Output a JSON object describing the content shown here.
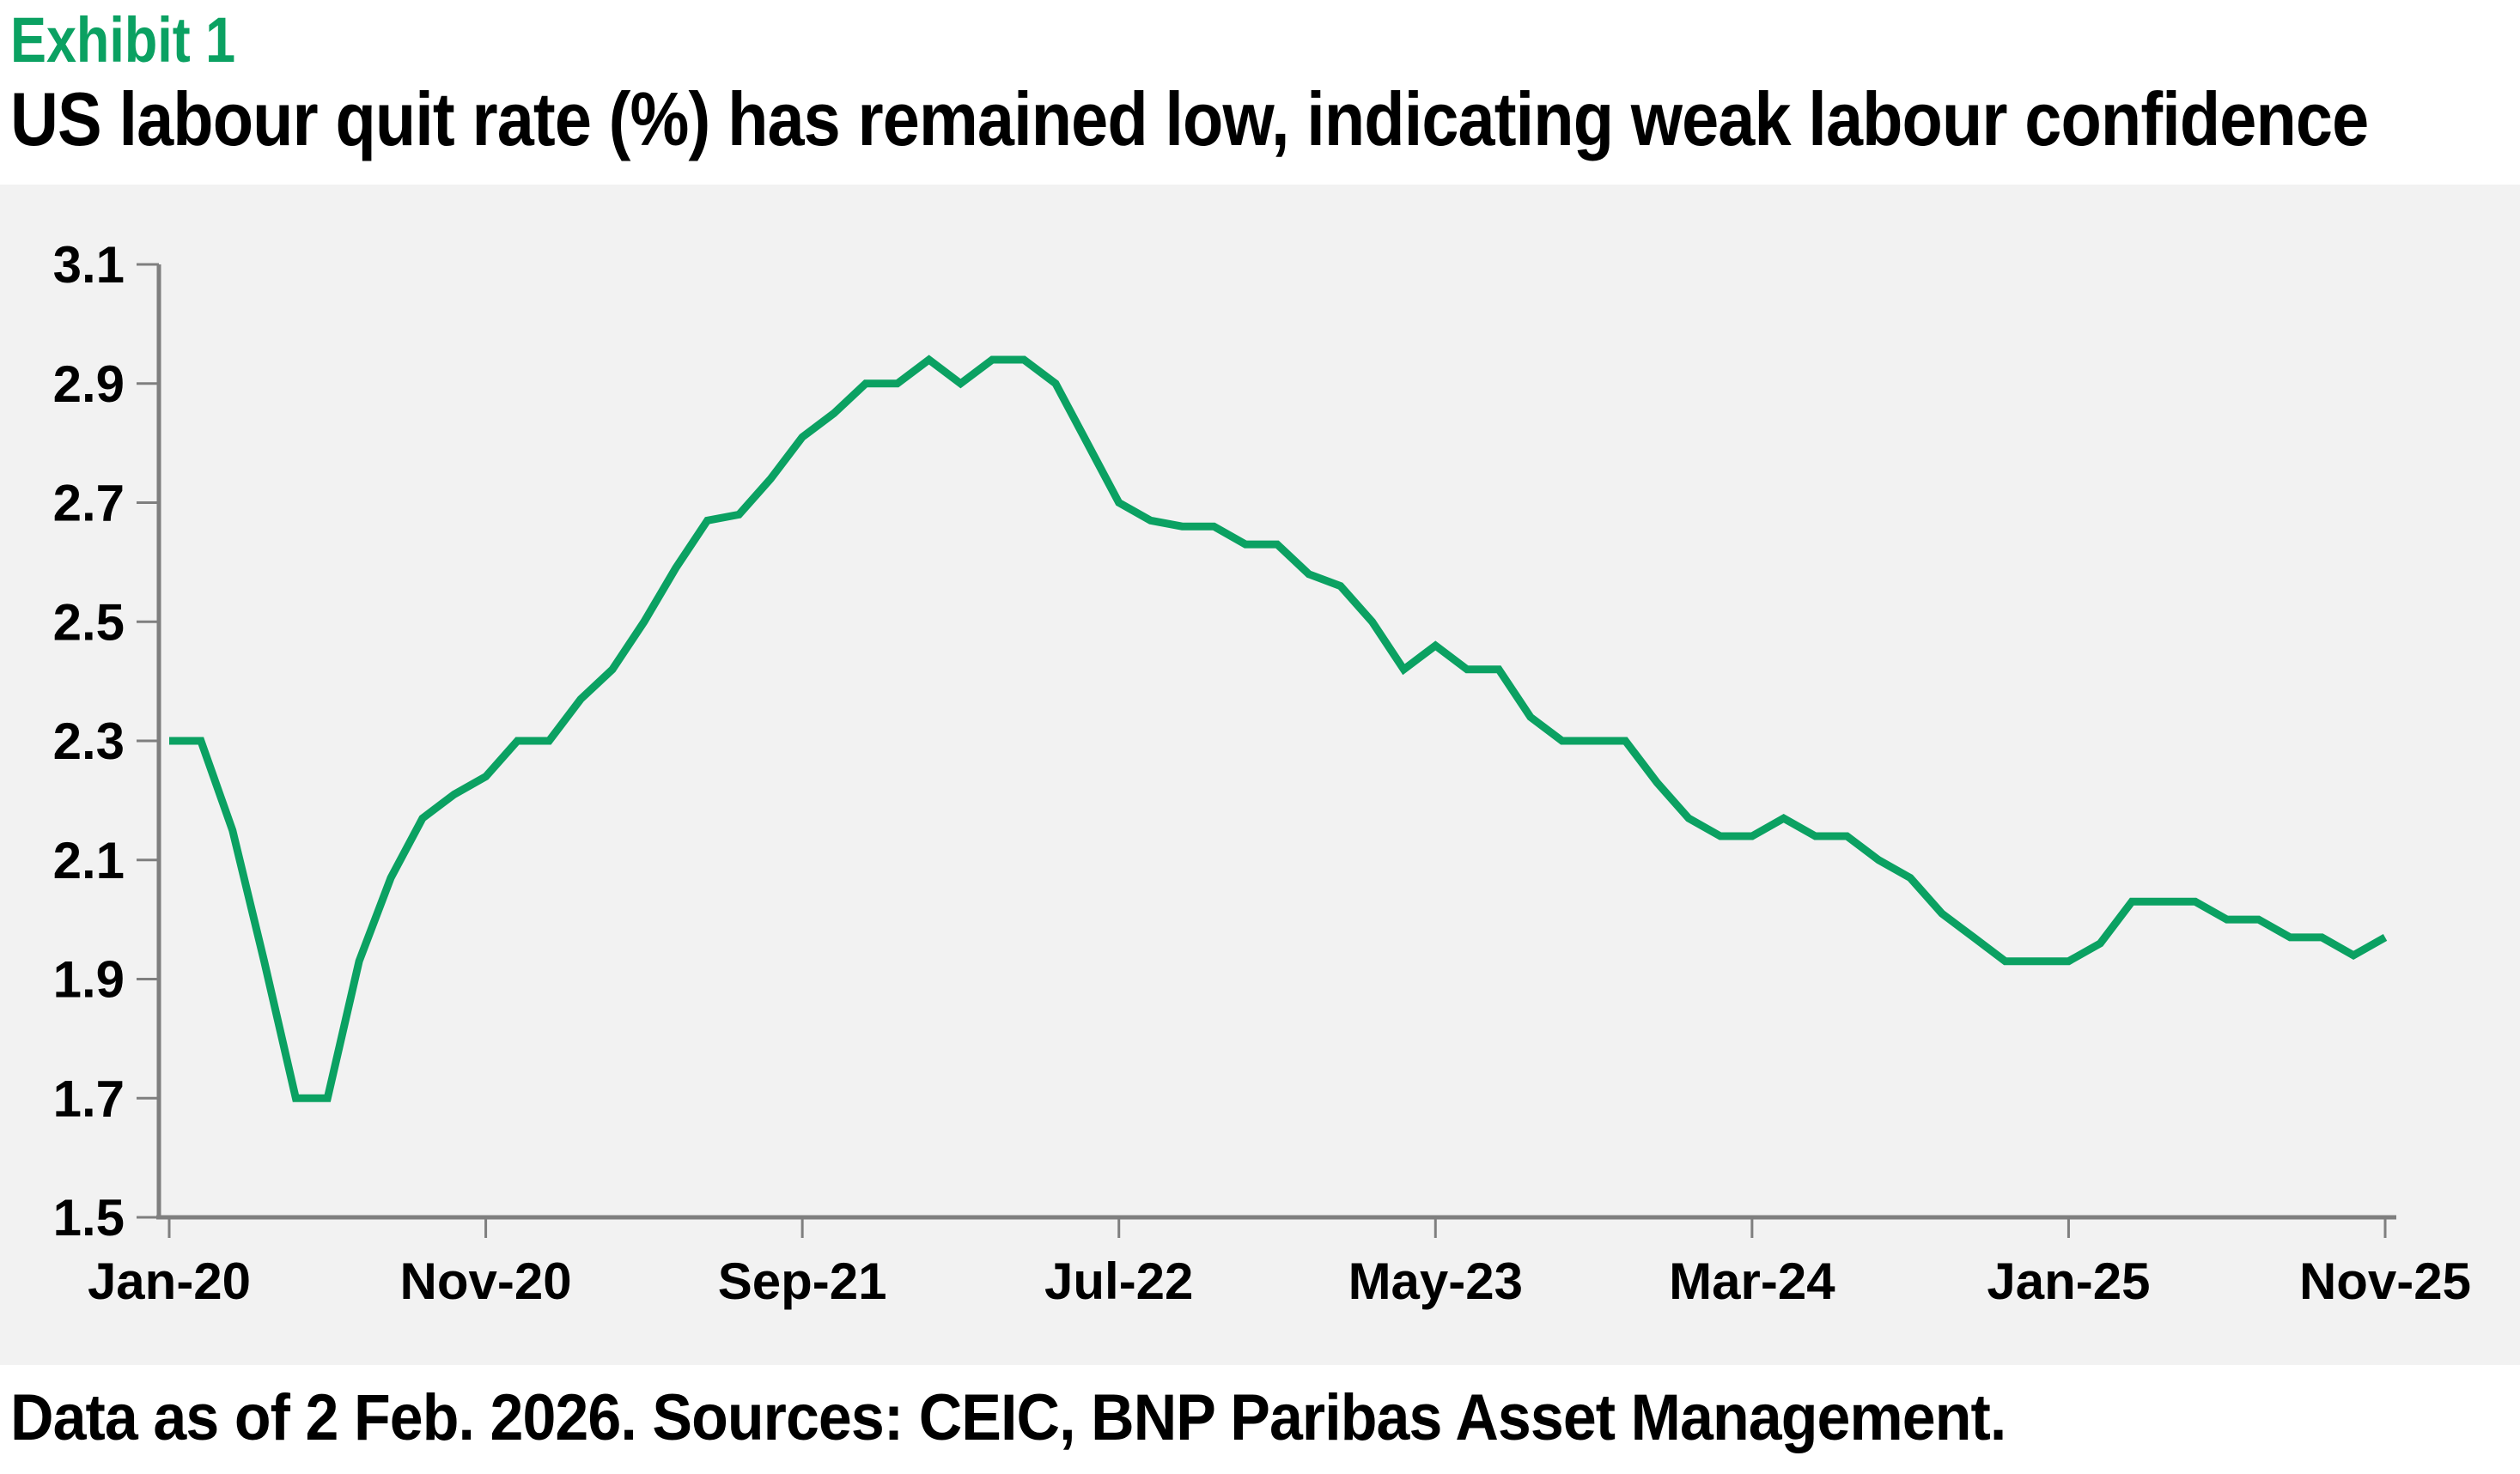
{
  "header": {
    "exhibit": "Exhibit 1",
    "title": "US labour quit rate (%) has remained low, indicating weak labour confidence"
  },
  "footer": {
    "note": "Data as of 2 Feb. 2026. Sources: CEIC, BNP Paribas Asset Management."
  },
  "colors": {
    "green": "#0BA162",
    "accent_green": "#0BA162",
    "panel_bg": "#F2F2F2",
    "axis_gray": "#7F7F7F",
    "text": "#000000",
    "page_bg": "#FFFFFF"
  },
  "chart_data": {
    "type": "line",
    "title": "US labour quit rate (%) has remained low, indicating weak labour confidence",
    "xlabel": "",
    "ylabel": "",
    "grid": false,
    "legend": "none",
    "ylim": [
      1.5,
      3.1
    ],
    "y_ticks": [
      1.5,
      1.7,
      1.9,
      2.1,
      2.3,
      2.5,
      2.7,
      2.9,
      3.1
    ],
    "x_tick_labels": [
      "Jan-20",
      "Nov-20",
      "Sep-21",
      "Jul-22",
      "May-23",
      "Mar-24",
      "Jan-25",
      "Nov-25"
    ],
    "x_tick_indices": [
      0,
      10,
      20,
      30,
      40,
      50,
      60,
      70
    ],
    "x": [
      "Jan-20",
      "Feb-20",
      "Mar-20",
      "Apr-20",
      "May-20",
      "Jun-20",
      "Jul-20",
      "Aug-20",
      "Sep-20",
      "Oct-20",
      "Nov-20",
      "Dec-20",
      "Jan-21",
      "Feb-21",
      "Mar-21",
      "Apr-21",
      "May-21",
      "Jun-21",
      "Jul-21",
      "Aug-21",
      "Sep-21",
      "Oct-21",
      "Nov-21",
      "Dec-21",
      "Jan-22",
      "Feb-22",
      "Mar-22",
      "Apr-22",
      "May-22",
      "Jun-22",
      "Jul-22",
      "Aug-22",
      "Sep-22",
      "Oct-22",
      "Nov-22",
      "Dec-22",
      "Jan-23",
      "Feb-23",
      "Mar-23",
      "Apr-23",
      "May-23",
      "Jun-23",
      "Jul-23",
      "Aug-23",
      "Sep-23",
      "Oct-23",
      "Nov-23",
      "Dec-23",
      "Jan-24",
      "Feb-24",
      "Mar-24",
      "Apr-24",
      "May-24",
      "Jun-24",
      "Jul-24",
      "Aug-24",
      "Sep-24",
      "Oct-24",
      "Nov-24",
      "Dec-24",
      "Jan-25",
      "Feb-25",
      "Mar-25",
      "Apr-25",
      "May-25",
      "Jun-25",
      "Jul-25",
      "Aug-25",
      "Sep-25",
      "Oct-25",
      "Nov-25"
    ],
    "values": [
      2.3,
      2.3,
      2.15,
      1.93,
      1.7,
      1.7,
      1.93,
      2.07,
      2.17,
      2.21,
      2.24,
      2.3,
      2.3,
      2.37,
      2.42,
      2.5,
      2.59,
      2.67,
      2.68,
      2.74,
      2.81,
      2.85,
      2.9,
      2.9,
      2.94,
      2.9,
      2.94,
      2.94,
      2.9,
      2.8,
      2.7,
      2.67,
      2.66,
      2.66,
      2.63,
      2.63,
      2.58,
      2.56,
      2.5,
      2.42,
      2.46,
      2.42,
      2.42,
      2.34,
      2.3,
      2.3,
      2.3,
      2.23,
      2.17,
      2.14,
      2.14,
      2.17,
      2.14,
      2.14,
      2.1,
      2.07,
      2.01,
      1.97,
      1.93,
      1.93,
      1.93,
      1.96,
      2.03,
      2.03,
      2.03,
      2.0,
      2.0,
      1.97,
      1.97,
      1.94,
      1.97
    ]
  }
}
